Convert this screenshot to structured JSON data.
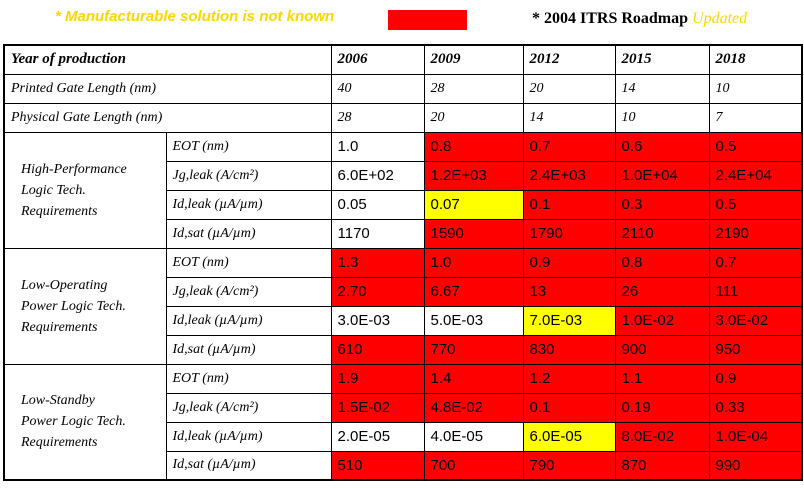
{
  "header": {
    "note": "* Manufacturable solution is not known",
    "roadmap": "* 2004 ITRS Roadmap",
    "updated": "Updated"
  },
  "table": {
    "columns": [
      "Year of production",
      "2006",
      "2009",
      "2012",
      "2015",
      "2018"
    ],
    "rows": [
      {
        "label": "Printed Gate Length (nm)",
        "values": [
          "40",
          "28",
          "20",
          "14",
          "10"
        ]
      },
      {
        "label": "Physical Gate Length (nm)",
        "values": [
          "28",
          "20",
          "14",
          "10",
          "7"
        ]
      }
    ],
    "groups": [
      {
        "label": [
          "High-Performance",
          "Logic Tech.",
          "Requirements"
        ],
        "rows": [
          {
            "param": "EOT (nm)",
            "values": [
              "1.0",
              "0.8",
              "0.7",
              "0.6",
              "0.5"
            ],
            "colors": [
              "#ffffff",
              "#ff0000",
              "#ff0000",
              "#ff0000",
              "#ff0000"
            ]
          },
          {
            "param": "Jg,leak (A/cm²)",
            "values": [
              "6.0E+02",
              "1.2E+03",
              "2.4E+03",
              "1.0E+04",
              "2.4E+04"
            ],
            "colors": [
              "#ffffff",
              "#ff0000",
              "#ff0000",
              "#ff0000",
              "#ff0000"
            ]
          },
          {
            "param": "Id,leak (µA/µm)",
            "values": [
              "0.05",
              "0.07",
              "0.1",
              "0.3",
              "0.5"
            ],
            "colors": [
              "#ffffff",
              "#ffff00",
              "#ff0000",
              "#ff0000",
              "#ff0000"
            ]
          },
          {
            "param": "Id,sat (µA/µm)",
            "values": [
              "1170",
              "1590",
              "1790",
              "2110",
              "2190"
            ],
            "colors": [
              "#ffffff",
              "#ff0000",
              "#ff0000",
              "#ff0000",
              "#ff0000"
            ]
          }
        ]
      },
      {
        "label": [
          "Low-Operating",
          "Power Logic Tech.",
          "Requirements"
        ],
        "rows": [
          {
            "param": "EOT (nm)",
            "values": [
              "1.3",
              "1.0",
              "0.9",
              "0.8",
              "0.7"
            ],
            "colors": [
              "#ff0000",
              "#ff0000",
              "#ff0000",
              "#ff0000",
              "#ff0000"
            ]
          },
          {
            "param": "Jg,leak (A/cm²)",
            "values": [
              "2.70",
              "6.67",
              "13",
              "26",
              "111"
            ],
            "colors": [
              "#ff0000",
              "#ff0000",
              "#ff0000",
              "#ff0000",
              "#ff0000"
            ]
          },
          {
            "param": "Id,leak (µA/µm)",
            "values": [
              "3.0E-03",
              "5.0E-03",
              "7.0E-03",
              "1.0E-02",
              "3.0E-02"
            ],
            "colors": [
              "#ffffff",
              "#ffffff",
              "#ffff00",
              "#ff0000",
              "#ff0000"
            ]
          },
          {
            "param": "Id,sat (µA/µm)",
            "values": [
              "610",
              "770",
              "830",
              "900",
              "950"
            ],
            "colors": [
              "#ff0000",
              "#ff0000",
              "#ff0000",
              "#ff0000",
              "#ff0000"
            ]
          }
        ]
      },
      {
        "label": [
          "Low-Standby",
          "Power Logic Tech.",
          "Requirements"
        ],
        "rows": [
          {
            "param": "EOT (nm)",
            "values": [
              "1.9",
              "1.4",
              "1.2",
              "1.1",
              "0.9"
            ],
            "colors": [
              "#ff0000",
              "#ff0000",
              "#ff0000",
              "#ff0000",
              "#ff0000"
            ]
          },
          {
            "param": "Jg,leak (A/cm²)",
            "values": [
              "1.5E-02",
              "4.8E-02",
              "0.1",
              "0.19",
              "0.33"
            ],
            "colors": [
              "#ff0000",
              "#ff0000",
              "#ff0000",
              "#ff0000",
              "#ff0000"
            ]
          },
          {
            "param": "Id,leak (µA/µm)",
            "values": [
              "2.0E-05",
              "4.0E-05",
              "6.0E-05",
              "8.0E-02",
              "1.0E-04"
            ],
            "colors": [
              "#ffffff",
              "#ffffff",
              "#ffff00",
              "#ff0000",
              "#ff0000"
            ]
          },
          {
            "param": "Id,sat (µA/µm)",
            "values": [
              "510",
              "700",
              "790",
              "870",
              "990"
            ],
            "colors": [
              "#ff0000",
              "#ff0000",
              "#ff0000",
              "#ff0000",
              "#ff0000"
            ]
          }
        ]
      }
    ]
  }
}
